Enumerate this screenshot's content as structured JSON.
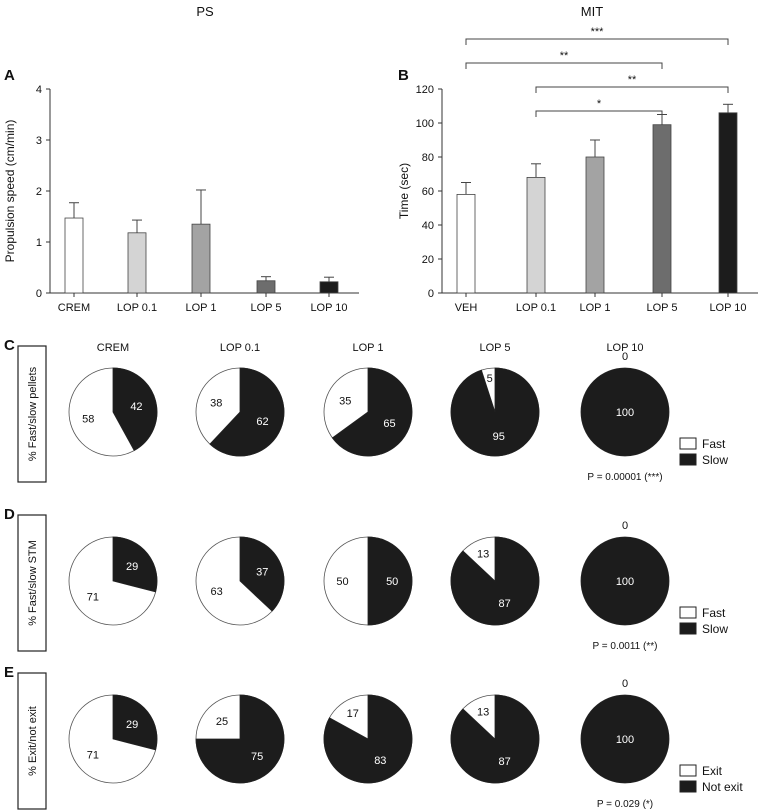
{
  "chart_data": [
    {
      "panel": "A",
      "title": "PS",
      "type": "bar",
      "ylabel": "Propulsion speed (cm/min)",
      "xlabel": "",
      "ylim": [
        0,
        4
      ],
      "yticks": [
        "0",
        "1",
        "2",
        "3",
        "4"
      ],
      "categories": [
        "CREM",
        "LOP 0.1",
        "LOP 1",
        "LOP 5",
        "LOP 10"
      ],
      "values": [
        1.47,
        1.18,
        1.35,
        0.24,
        0.22
      ],
      "errors": [
        0.3,
        0.25,
        0.67,
        0.08,
        0.09
      ],
      "bar_colors": [
        "#ffffff",
        "#d4d4d4",
        "#a3a3a3",
        "#6d6d6d",
        "#1c1c1c"
      ]
    },
    {
      "panel": "B",
      "title": "MIT",
      "type": "bar",
      "ylabel": "Time (sec)",
      "xlabel": "",
      "ylim": [
        0,
        120
      ],
      "yticks": [
        "0",
        "20",
        "40",
        "60",
        "80",
        "100",
        "120"
      ],
      "categories": [
        "VEH",
        "LOP 0.1",
        "LOP 1",
        "LOP 5",
        "LOP 10"
      ],
      "values": [
        58,
        68,
        80,
        99,
        106
      ],
      "errors": [
        7,
        8,
        10,
        6,
        5
      ],
      "bar_colors": [
        "#ffffff",
        "#d4d4d4",
        "#a3a3a3",
        "#6d6d6d",
        "#1c1c1c"
      ],
      "significance": [
        {
          "from": "VEH",
          "to": "LOP 10",
          "label": "***"
        },
        {
          "from": "VEH",
          "to": "LOP 5",
          "label": "**"
        },
        {
          "from": "LOP 0.1",
          "to": "LOP 10",
          "label": "**"
        },
        {
          "from": "LOP 0.1",
          "to": "LOP 5",
          "label": "*"
        }
      ]
    },
    {
      "panel": "C",
      "type": "pie",
      "row_label": "% Fast/slow pellets",
      "groups": [
        "CREM",
        "LOP 0.1",
        "LOP 1",
        "LOP 5",
        "LOP 10"
      ],
      "white_values": [
        58,
        38,
        35,
        5,
        0
      ],
      "black_values": [
        42,
        62,
        65,
        95,
        100
      ],
      "legend": [
        "Fast",
        "Slow"
      ],
      "p_text": "P = 0.00001 (***)"
    },
    {
      "panel": "D",
      "type": "pie",
      "row_label": "% Fast/slow STM",
      "groups": [
        "CREM",
        "LOP 0.1",
        "LOP 1",
        "LOP 5",
        "LOP 10"
      ],
      "white_values": [
        71,
        63,
        50,
        13,
        0
      ],
      "black_values": [
        29,
        37,
        50,
        87,
        100
      ],
      "legend": [
        "Fast",
        "Slow"
      ],
      "p_text": "P = 0.0011 (**)"
    },
    {
      "panel": "E",
      "type": "pie",
      "row_label": "% Exit/not exit",
      "groups": [
        "CREM",
        "LOP 0.1",
        "LOP 1",
        "LOP 5",
        "LOP 10"
      ],
      "white_values": [
        71,
        25,
        17,
        13,
        0
      ],
      "black_values": [
        29,
        75,
        83,
        87,
        100
      ],
      "legend": [
        "Exit",
        "Not exit"
      ],
      "p_text": "P = 0.029 (*)"
    }
  ],
  "colors": {
    "pie_dark": "#1c1c1c",
    "pie_light": "#ffffff",
    "axis": "#333333"
  }
}
